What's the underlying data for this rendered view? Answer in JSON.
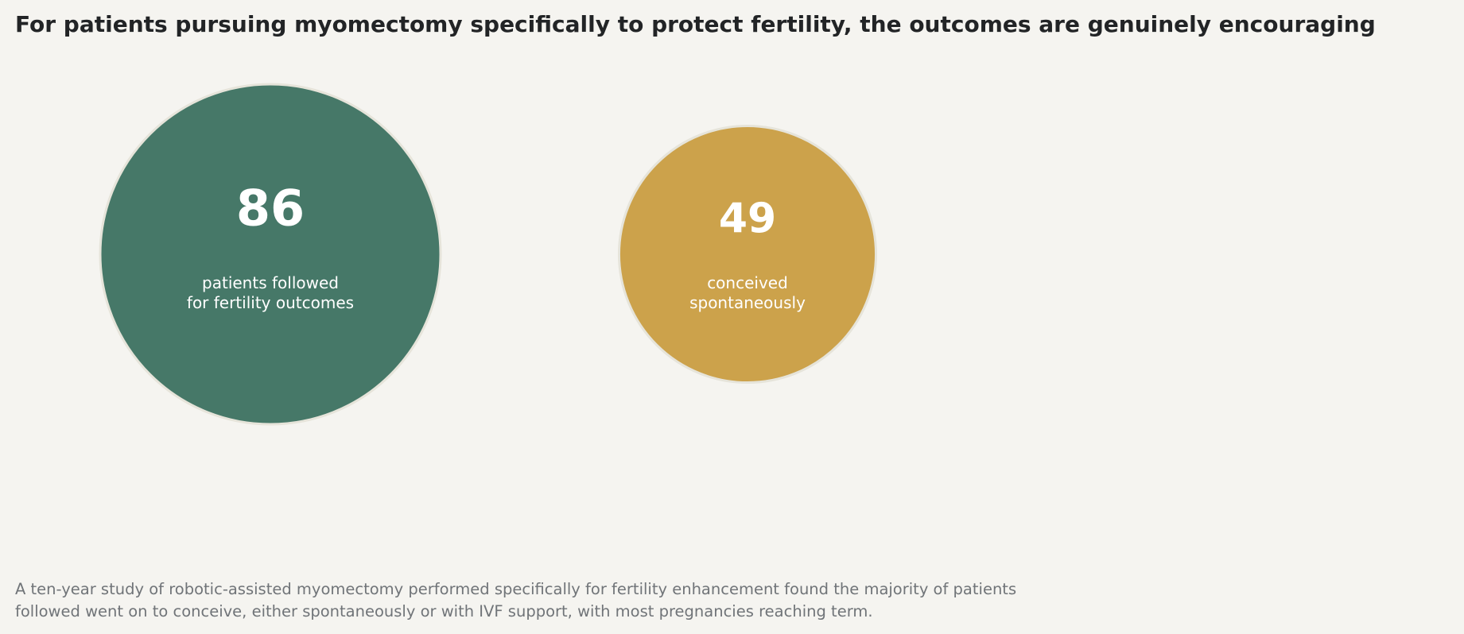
{
  "title": "For patients pursuing myomectomy specifically to protect fertility, the outcomes are genuinely encouraging",
  "caption_lines": [
    "A ten-year study of robotic-assisted myomectomy performed specifically for fertility enhancement found the majority of patients",
    "followed went on to conceive, either spontaneously or with IVF support, with most pregnancies reaching term."
  ],
  "chart_data": {
    "type": "bubble",
    "title": "For patients pursuing myomectomy specifically to protect fertility, the outcomes are genuinely encouraging",
    "bubbles": [
      {
        "value": 86,
        "label_lines": [
          "patients followed",
          "for fertility outcomes"
        ],
        "color": "#467868"
      },
      {
        "value": 49,
        "label_lines": [
          "conceived",
          "spontaneously"
        ],
        "color": "#cca24b"
      }
    ]
  }
}
